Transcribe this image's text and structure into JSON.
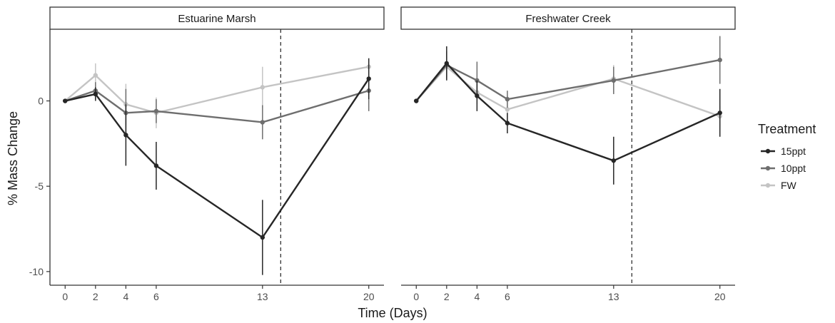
{
  "chart_data": {
    "type": "line",
    "xlabel": "Time (Days)",
    "ylabel": "% Mass Change",
    "x_ticks": [
      0,
      2,
      4,
      6,
      13,
      20
    ],
    "y_ticks": [
      0,
      -5,
      -10
    ],
    "ylim": [
      -10.8,
      4.2
    ],
    "xlim": [
      -1,
      21
    ],
    "grid": false,
    "legend": {
      "title": "Treatment",
      "position": "right",
      "entries": [
        "15ppt",
        "10ppt",
        "FW"
      ]
    },
    "colors": {
      "15ppt": "#262626",
      "10ppt": "#6e6e6e",
      "FW": "#c4c4c4",
      "vline": "#333333"
    },
    "panels": [
      {
        "title": "Estuarine Marsh",
        "vline_x": 14.2,
        "series": [
          {
            "name": "FW",
            "x": [
              0,
              2,
              4,
              6,
              13,
              20
            ],
            "y": [
              0,
              1.5,
              -0.2,
              -0.7,
              0.8,
              2.0
            ],
            "err": [
              0,
              0.7,
              1.2,
              0.9,
              1.2,
              0
            ]
          },
          {
            "name": "10ppt",
            "x": [
              0,
              2,
              4,
              6,
              13,
              20
            ],
            "y": [
              0,
              0.6,
              -0.7,
              -0.6,
              -1.25,
              0.6
            ],
            "err": [
              0,
              0.5,
              1.4,
              0.7,
              1.0,
              1.2
            ]
          },
          {
            "name": "15ppt",
            "x": [
              0,
              2,
              4,
              6,
              13,
              20
            ],
            "y": [
              0,
              0.4,
              -2.0,
              -3.8,
              -8.0,
              1.3
            ],
            "err": [
              0,
              0.4,
              1.8,
              1.4,
              2.2,
              1.2
            ]
          }
        ]
      },
      {
        "title": "Freshwater Creek",
        "vline_x": 14.2,
        "series": [
          {
            "name": "FW",
            "x": [
              0,
              2,
              4,
              6,
              13,
              20
            ],
            "y": [
              0,
              2.0,
              0.5,
              -0.5,
              1.3,
              -0.9
            ],
            "err": [
              0,
              0.6,
              0.7,
              0.8,
              0.8,
              0.6
            ]
          },
          {
            "name": "10ppt",
            "x": [
              0,
              2,
              4,
              6,
              13,
              20
            ],
            "y": [
              0,
              2.1,
              1.2,
              0.1,
              1.2,
              2.4
            ],
            "err": [
              0,
              0.8,
              1.1,
              0.5,
              0.8,
              1.4
            ]
          },
          {
            "name": "15ppt",
            "x": [
              0,
              2,
              4,
              6,
              13,
              20
            ],
            "y": [
              0,
              2.2,
              0.3,
              -1.3,
              -3.5,
              -0.7
            ],
            "err": [
              0,
              1.0,
              0.9,
              0.6,
              1.4,
              1.4
            ]
          }
        ]
      }
    ]
  }
}
